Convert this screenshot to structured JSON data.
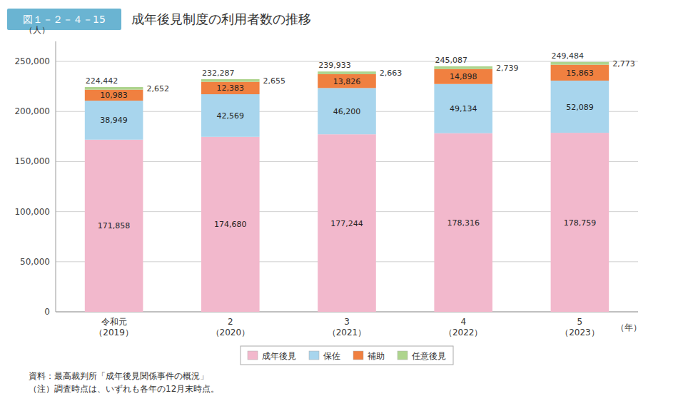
{
  "chart_data": {
    "type": "bar",
    "stacked": true,
    "title": "成年後見制度の利用者数の推移",
    "annotations": [
      "図１－２－４－15",
      "資料：最高裁判所「成年後見関係事件の概況」",
      "（注）調査時点は、いずれも各年の12月末時点。"
    ],
    "y_label": "（人）",
    "x_label": "（年）",
    "categories": [
      "令和元\n（2019）",
      "2\n（2020）",
      "3\n（2021）",
      "4\n（2022）",
      "5\n（2023）"
    ],
    "series": [
      {
        "name": "成年後見",
        "color": "#f2b8cc",
        "values": [
          171858,
          174680,
          177244,
          178316,
          178759
        ],
        "value_labels": [
          "171,858",
          "174,680",
          "177,244",
          "178,316",
          "178,759"
        ]
      },
      {
        "name": "保佐",
        "color": "#a8d5ed",
        "values": [
          38949,
          42569,
          46200,
          49134,
          52089
        ],
        "value_labels": [
          "38,949",
          "42,569",
          "46,200",
          "49,134",
          "52,089"
        ]
      },
      {
        "name": "補助",
        "color": "#f08040",
        "values": [
          10983,
          12383,
          13826,
          14898,
          15863
        ],
        "value_labels": [
          "10,983",
          "12,383",
          "13,826",
          "14,898",
          "15,863"
        ]
      },
      {
        "name": "任意後見",
        "color": "#aed48e",
        "values": [
          2652,
          2655,
          2663,
          2739,
          2773
        ],
        "value_labels": [
          "2,652",
          "2,655",
          "2,663",
          "2,739",
          "2,773"
        ]
      }
    ],
    "totals": [
      224442,
      232287,
      239933,
      245087,
      249484
    ],
    "total_labels": [
      "224,442",
      "232,287",
      "239,933",
      "245,087",
      "249,484"
    ],
    "ylim": [
      0,
      270000
    ],
    "yticks": [
      0,
      {
        "value": 50000,
        "label": "50,000"
      },
      {
        "value": 100000,
        "label": "100,000"
      },
      {
        "value": 150000,
        "label": "150,000"
      },
      {
        "value": 200000,
        "label": "200,000"
      },
      {
        "value": 250000,
        "label": "250,000"
      }
    ],
    "grid": true,
    "legend": "bottom",
    "data_labels": true
  }
}
